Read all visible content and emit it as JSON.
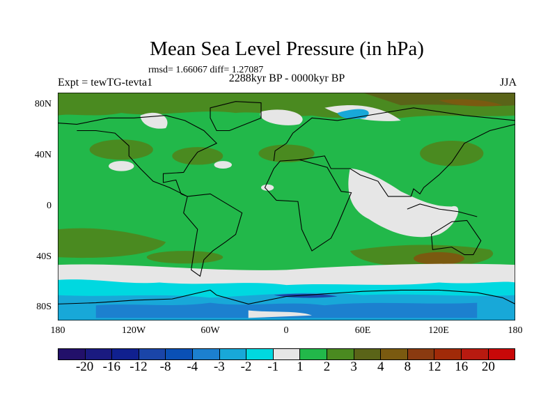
{
  "title": "Mean Sea Level Pressure (in hPa)",
  "stats": "rmsd= 1.66067 diff= 1.27087",
  "subtitle_left": "Expt = tewTG-tevta1",
  "subtitle_center": "2288kyr BP - 0000kyr BP",
  "subtitle_right": "JJA",
  "x_ticks": [
    "180",
    "120W",
    "60W",
    "0",
    "60E",
    "120E",
    "180"
  ],
  "y_ticks": [
    "80N",
    "40N",
    "0",
    "40S",
    "80S"
  ],
  "colorbar": {
    "levels": [
      "-20",
      "-16",
      "-12",
      "-8",
      "-4",
      "-3",
      "-2",
      "-1",
      "1",
      "2",
      "3",
      "4",
      "8",
      "12",
      "16",
      "20"
    ],
    "colors": [
      "#22106a",
      "#1a1a80",
      "#10208f",
      "#1a45a8",
      "#0a50b5",
      "#1c80cf",
      "#18a8d8",
      "#00d8e0",
      "#e6e6e6",
      "#22b84a",
      "#4a8a20",
      "#5a6418",
      "#7a5a10",
      "#8a3a10",
      "#a02a08",
      "#b81a10",
      "#c80808"
    ]
  }
}
